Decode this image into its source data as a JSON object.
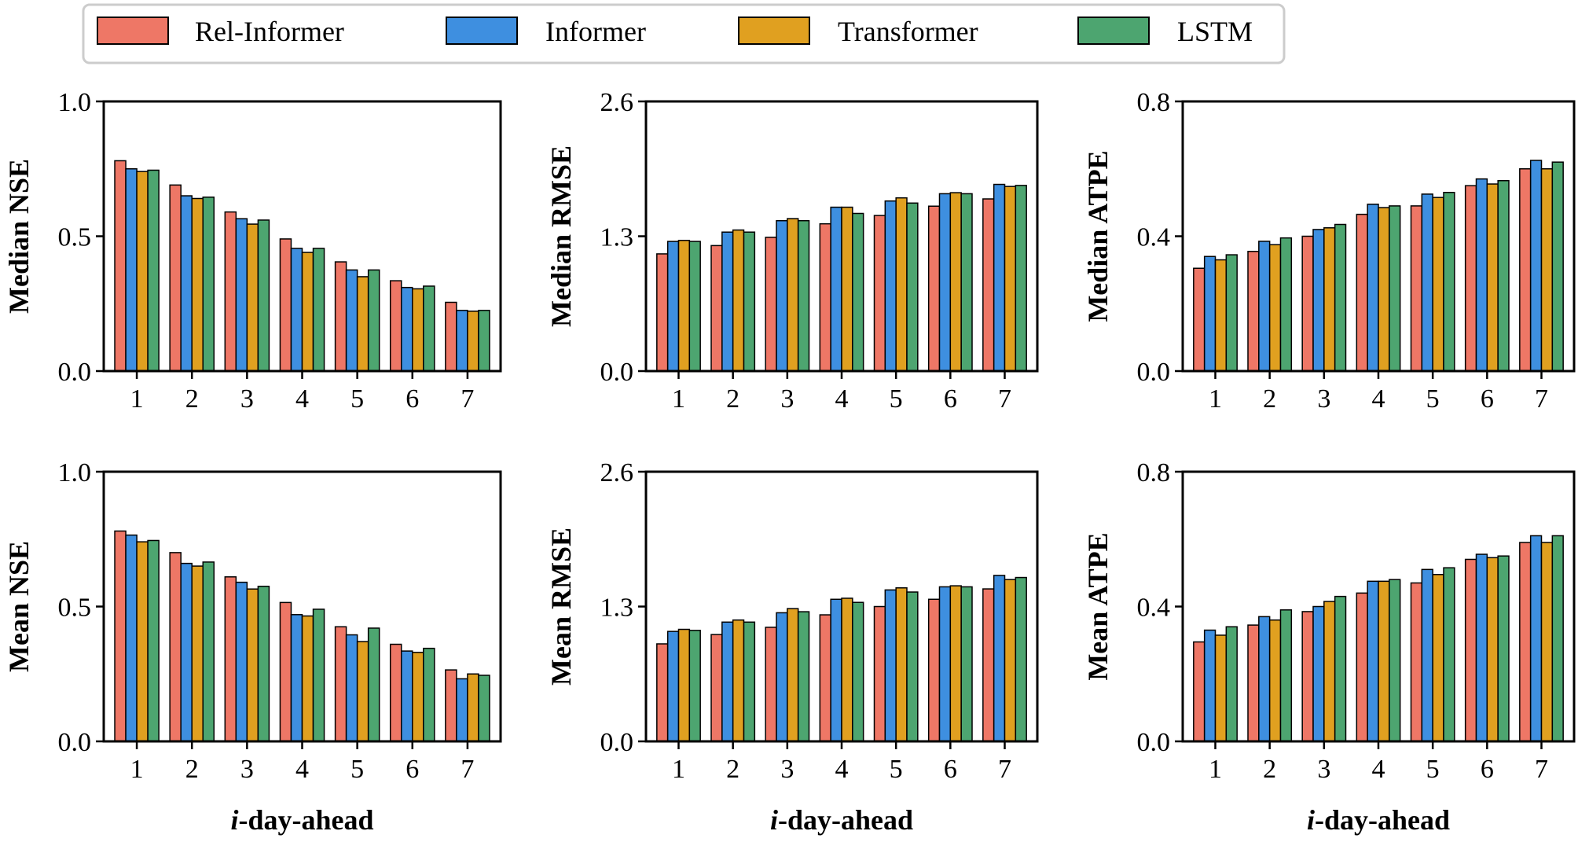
{
  "legend": {
    "items": [
      {
        "name": "Rel-Informer",
        "color": "#EE7766"
      },
      {
        "name": "Informer",
        "color": "#3E8FE0"
      },
      {
        "name": "Transformer",
        "color": "#E0A020"
      },
      {
        "name": "LSTM",
        "color": "#4DA570"
      }
    ]
  },
  "chart_data": [
    {
      "type": "bar",
      "panel": "top-left",
      "categories": [
        "1",
        "2",
        "3",
        "4",
        "5",
        "6",
        "7"
      ],
      "xlabel": "",
      "ylabel": "Median NSE",
      "ylim": [
        0,
        1.0
      ],
      "yticks": [
        "0.0",
        "0.5",
        "1.0"
      ],
      "ytick_values": [
        0,
        0.5,
        1.0
      ],
      "series": [
        {
          "name": "Rel-Informer",
          "values": [
            0.78,
            0.69,
            0.59,
            0.49,
            0.405,
            0.335,
            0.255
          ]
        },
        {
          "name": "Informer",
          "values": [
            0.75,
            0.65,
            0.565,
            0.455,
            0.375,
            0.31,
            0.225
          ]
        },
        {
          "name": "Transformer",
          "values": [
            0.74,
            0.64,
            0.545,
            0.44,
            0.35,
            0.305,
            0.222
          ]
        },
        {
          "name": "LSTM",
          "values": [
            0.745,
            0.645,
            0.56,
            0.455,
            0.375,
            0.315,
            0.225
          ]
        }
      ]
    },
    {
      "type": "bar",
      "panel": "top-middle",
      "categories": [
        "1",
        "2",
        "3",
        "4",
        "5",
        "6",
        "7"
      ],
      "xlabel": "",
      "ylabel": "Median RMSE",
      "ylim": [
        0,
        2.6
      ],
      "yticks": [
        "0.0",
        "1.3",
        "2.6"
      ],
      "ytick_values": [
        0,
        1.3,
        2.6
      ],
      "series": [
        {
          "name": "Rel-Informer",
          "values": [
            1.13,
            1.21,
            1.29,
            1.42,
            1.5,
            1.59,
            1.66
          ]
        },
        {
          "name": "Informer",
          "values": [
            1.25,
            1.34,
            1.45,
            1.58,
            1.64,
            1.71,
            1.8
          ]
        },
        {
          "name": "Transformer",
          "values": [
            1.26,
            1.36,
            1.47,
            1.58,
            1.67,
            1.72,
            1.78
          ]
        },
        {
          "name": "LSTM",
          "values": [
            1.25,
            1.34,
            1.45,
            1.52,
            1.62,
            1.71,
            1.79
          ]
        }
      ]
    },
    {
      "type": "bar",
      "panel": "top-right",
      "categories": [
        "1",
        "2",
        "3",
        "4",
        "5",
        "6",
        "7"
      ],
      "xlabel": "",
      "ylabel": "Median ATPE",
      "ylim": [
        0,
        0.8
      ],
      "yticks": [
        "0.0",
        "0.4",
        "0.8"
      ],
      "ytick_values": [
        0,
        0.4,
        0.8
      ],
      "series": [
        {
          "name": "Rel-Informer",
          "values": [
            0.305,
            0.355,
            0.4,
            0.465,
            0.49,
            0.55,
            0.6
          ]
        },
        {
          "name": "Informer",
          "values": [
            0.34,
            0.385,
            0.42,
            0.495,
            0.525,
            0.57,
            0.625
          ]
        },
        {
          "name": "Transformer",
          "values": [
            0.33,
            0.375,
            0.425,
            0.485,
            0.515,
            0.555,
            0.6
          ]
        },
        {
          "name": "LSTM",
          "values": [
            0.345,
            0.395,
            0.435,
            0.49,
            0.53,
            0.565,
            0.62
          ]
        }
      ]
    },
    {
      "type": "bar",
      "panel": "bottom-left",
      "categories": [
        "1",
        "2",
        "3",
        "4",
        "5",
        "6",
        "7"
      ],
      "xlabel": "i-day-ahead",
      "ylabel": "Mean NSE",
      "ylim": [
        0,
        1.0
      ],
      "yticks": [
        "0.0",
        "0.5",
        "1.0"
      ],
      "ytick_values": [
        0,
        0.5,
        1.0
      ],
      "series": [
        {
          "name": "Rel-Informer",
          "values": [
            0.78,
            0.7,
            0.61,
            0.515,
            0.425,
            0.36,
            0.265
          ]
        },
        {
          "name": "Informer",
          "values": [
            0.765,
            0.66,
            0.59,
            0.47,
            0.395,
            0.335,
            0.232
          ]
        },
        {
          "name": "Transformer",
          "values": [
            0.74,
            0.65,
            0.565,
            0.465,
            0.37,
            0.33,
            0.25
          ]
        },
        {
          "name": "LSTM",
          "values": [
            0.745,
            0.665,
            0.575,
            0.49,
            0.42,
            0.345,
            0.245
          ]
        }
      ]
    },
    {
      "type": "bar",
      "panel": "bottom-middle",
      "categories": [
        "1",
        "2",
        "3",
        "4",
        "5",
        "6",
        "7"
      ],
      "xlabel": "i-day-ahead",
      "ylabel": "Mean RMSE",
      "ylim": [
        0,
        2.6
      ],
      "yticks": [
        "0.0",
        "1.3",
        "2.6"
      ],
      "ytick_values": [
        0,
        1.3,
        2.6
      ],
      "series": [
        {
          "name": "Rel-Informer",
          "values": [
            0.94,
            1.03,
            1.1,
            1.22,
            1.3,
            1.37,
            1.47
          ]
        },
        {
          "name": "Informer",
          "values": [
            1.06,
            1.15,
            1.24,
            1.37,
            1.46,
            1.49,
            1.6
          ]
        },
        {
          "name": "Transformer",
          "values": [
            1.08,
            1.17,
            1.28,
            1.38,
            1.48,
            1.5,
            1.56
          ]
        },
        {
          "name": "LSTM",
          "values": [
            1.07,
            1.15,
            1.25,
            1.34,
            1.44,
            1.49,
            1.58
          ]
        }
      ]
    },
    {
      "type": "bar",
      "panel": "bottom-right",
      "categories": [
        "1",
        "2",
        "3",
        "4",
        "5",
        "6",
        "7"
      ],
      "xlabel": "i-day-ahead",
      "ylabel": "Mean ATPE",
      "ylim": [
        0,
        0.8
      ],
      "yticks": [
        "0.0",
        "0.4",
        "0.8"
      ],
      "ytick_values": [
        0,
        0.4,
        0.8
      ],
      "series": [
        {
          "name": "Rel-Informer",
          "values": [
            0.295,
            0.345,
            0.385,
            0.44,
            0.47,
            0.54,
            0.59
          ]
        },
        {
          "name": "Informer",
          "values": [
            0.33,
            0.37,
            0.4,
            0.475,
            0.51,
            0.555,
            0.61
          ]
        },
        {
          "name": "Transformer",
          "values": [
            0.315,
            0.36,
            0.415,
            0.475,
            0.495,
            0.545,
            0.59
          ]
        },
        {
          "name": "LSTM",
          "values": [
            0.34,
            0.39,
            0.43,
            0.48,
            0.515,
            0.55,
            0.61
          ]
        }
      ]
    }
  ]
}
